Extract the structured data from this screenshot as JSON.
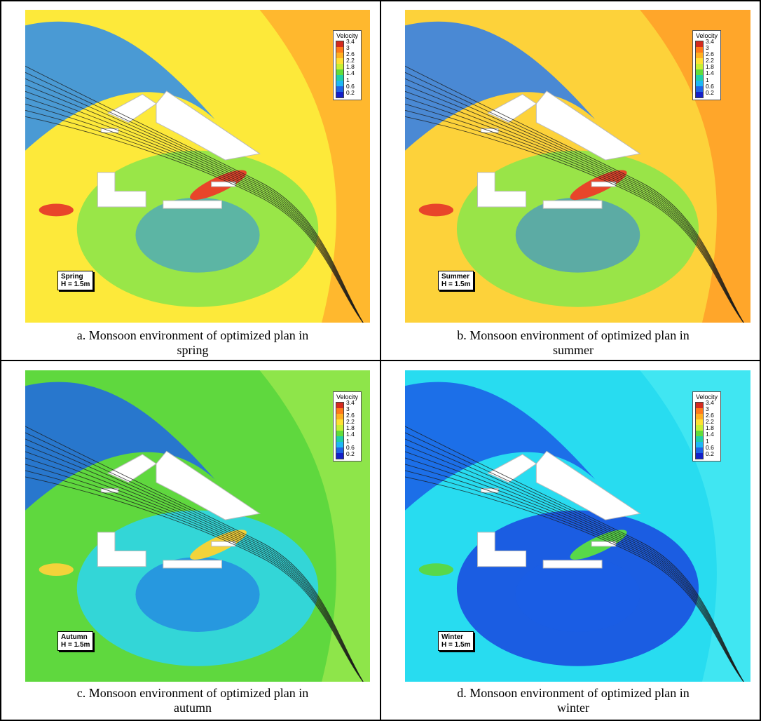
{
  "legend": {
    "title": "Velocity",
    "ticks": [
      "3.4",
      "3",
      "2.6",
      "2.2",
      "1.8",
      "1.4",
      "1",
      "0.6",
      "0.2"
    ],
    "colors": [
      "#d42a1e",
      "#ff7a1a",
      "#ffb020",
      "#ffe033",
      "#c6f033",
      "#62dd3a",
      "#1fd0a8",
      "#1fb7f5",
      "#1e63e6",
      "#1420c8"
    ]
  },
  "panels": [
    {
      "season": "Spring",
      "height_label": "H = 1.5m",
      "caption_line1": "a. Monsoon environment of optimized plan in",
      "caption_line2": "spring",
      "field": {
        "base": "#fde93a",
        "outer": "#ffb82e",
        "wake": "#8ee54a",
        "near": "#2a8cf0",
        "jet": "#e8452a"
      },
      "flow_direction": "northwest-to-southeast"
    },
    {
      "season": "Summer",
      "height_label": "H = 1.5m",
      "caption_line1": "b. Monsoon environment of optimized plan in",
      "caption_line2": "summer",
      "field": {
        "base": "#fdd23a",
        "outer": "#ffa62a",
        "wake": "#8ee54a",
        "near": "#2a7cf0",
        "jet": "#e8452a"
      },
      "flow_direction": "northwest-to-southeast"
    },
    {
      "season": "Autumn",
      "height_label": "H = 1.5m",
      "caption_line1": "c. Monsoon environment of optimized plan in",
      "caption_line2": "autumn",
      "field": {
        "base": "#5fd83e",
        "outer": "#8ee54a",
        "wake": "#2fd6e8",
        "near": "#1e66e6",
        "jet": "#f3d33a"
      },
      "flow_direction": "northwest-to-southeast"
    },
    {
      "season": "Winter",
      "height_label": "H = 1.5m",
      "caption_line1": "d. Monsoon environment of optimized plan in",
      "caption_line2": "winter",
      "field": {
        "base": "#28dcf0",
        "outer": "#40e6f2",
        "wake": "#1a4fe0",
        "near": "#1a5ce6",
        "jet": "#58d84a"
      },
      "flow_direction": "northwest-to-southeast"
    }
  ]
}
